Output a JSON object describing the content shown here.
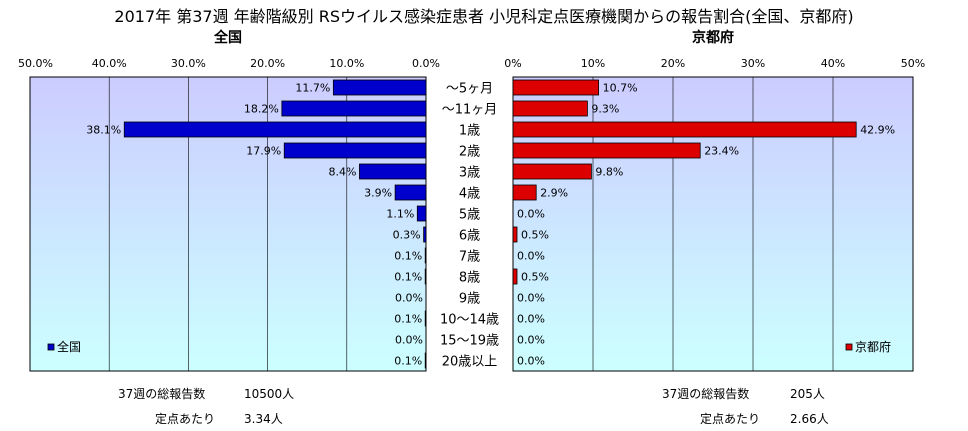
{
  "title": "2017年 第37週 年齢階級別 RSウイルス感染症患者 小児科定点医療機関からの報告割合(全国、京都府)",
  "left_panel": {
    "title": "全国",
    "legend": "全国",
    "footer_total_label": "37週の総報告数",
    "footer_total_value": "10500人",
    "footer_per_label": "定点あたり",
    "footer_per_value": "3.34人"
  },
  "right_panel": {
    "title": "京都府",
    "legend": "京都府",
    "footer_total_label": "37週の総報告数",
    "footer_total_value": "205人",
    "footer_per_label": "定点あたり",
    "footer_per_value": "2.66人"
  },
  "colors": {
    "national_bar": "#0000cc",
    "kyoto_bar": "#dd0000",
    "plot_top": "#ccccff",
    "plot_bottom": "#ccffff"
  },
  "chart_data": [
    {
      "type": "bar",
      "orientation": "horizontal",
      "xaxis": "reversed",
      "title": "全国",
      "categories": [
        "～5ヶ月",
        "～11ヶ月",
        "1歳",
        "2歳",
        "3歳",
        "4歳",
        "5歳",
        "6歳",
        "7歳",
        "8歳",
        "9歳",
        "10～14歳",
        "15～19歳",
        "20歳以上"
      ],
      "series": [
        {
          "name": "全国",
          "values": [
            11.7,
            18.2,
            38.1,
            17.9,
            8.4,
            3.9,
            1.1,
            0.3,
            0.1,
            0.1,
            0.0,
            0.1,
            0.0,
            0.1
          ],
          "labels": [
            "11.7%",
            "18.2%",
            "38.1%",
            "17.9%",
            "8.4%",
            "3.9%",
            "1.1%",
            "0.3%",
            "0.1%",
            "0.1%",
            "0.0%",
            "0.1%",
            "0.0%",
            "0.1%"
          ]
        }
      ],
      "xlim": [
        0,
        50
      ],
      "xticks": [
        "50.0%",
        "40.0%",
        "30.0%",
        "20.0%",
        "10.0%",
        "0.0%"
      ],
      "grid": true,
      "legend_position": "bottom-left"
    },
    {
      "type": "bar",
      "orientation": "horizontal",
      "title": "京都府",
      "categories": [
        "～5ヶ月",
        "～11ヶ月",
        "1歳",
        "2歳",
        "3歳",
        "4歳",
        "5歳",
        "6歳",
        "7歳",
        "8歳",
        "9歳",
        "10～14歳",
        "15～19歳",
        "20歳以上"
      ],
      "series": [
        {
          "name": "京都府",
          "values": [
            10.7,
            9.3,
            42.9,
            23.4,
            9.8,
            2.9,
            0.0,
            0.5,
            0.0,
            0.5,
            0.0,
            0.0,
            0.0,
            0.0
          ],
          "labels": [
            "10.7%",
            "9.3%",
            "42.9%",
            "23.4%",
            "9.8%",
            "2.9%",
            "0.0%",
            "0.5%",
            "0.0%",
            "0.5%",
            "0.0%",
            "0.0%",
            "0.0%",
            "0.0%"
          ]
        }
      ],
      "xlim": [
        0,
        50
      ],
      "xticks": [
        "0%",
        "10%",
        "20%",
        "30%",
        "40%",
        "50%"
      ],
      "grid": true,
      "legend_position": "bottom-right"
    }
  ]
}
